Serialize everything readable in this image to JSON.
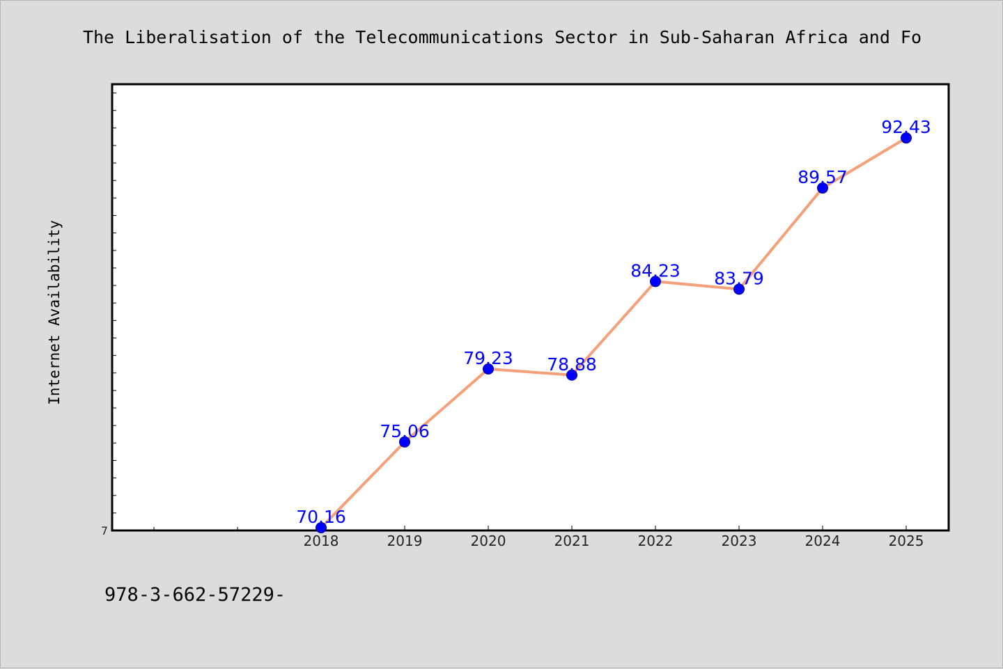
{
  "chart_data": {
    "type": "line",
    "title": "The Liberalisation of the Telecommunications Sector in Sub-Saharan Africa and Fo",
    "xlabel": "",
    "ylabel": "Internet Availability",
    "categories": [
      "2018",
      "2019",
      "2020",
      "2021",
      "2022",
      "2023",
      "2024",
      "2025"
    ],
    "series": [
      {
        "values": [
          70.16,
          75.06,
          79.23,
          78.88,
          84.23,
          83.79,
          89.57,
          92.43
        ],
        "data_labels": [
          "70.16",
          "75.06",
          "79.23",
          "78.88",
          "84.23",
          "83.79",
          "89.57",
          "92.43"
        ]
      }
    ],
    "ylim": [
      70,
      95.5
    ],
    "y_tick_labels": [
      "7"
    ],
    "grid": false,
    "legend": "none",
    "footnote": "978-3-662-57229-"
  },
  "colors": {
    "background": "#dcdcdc",
    "plot_area": "#ffffff",
    "line": "#f4a07a",
    "marker": "#0000ff",
    "data_label": "#0000ff"
  }
}
